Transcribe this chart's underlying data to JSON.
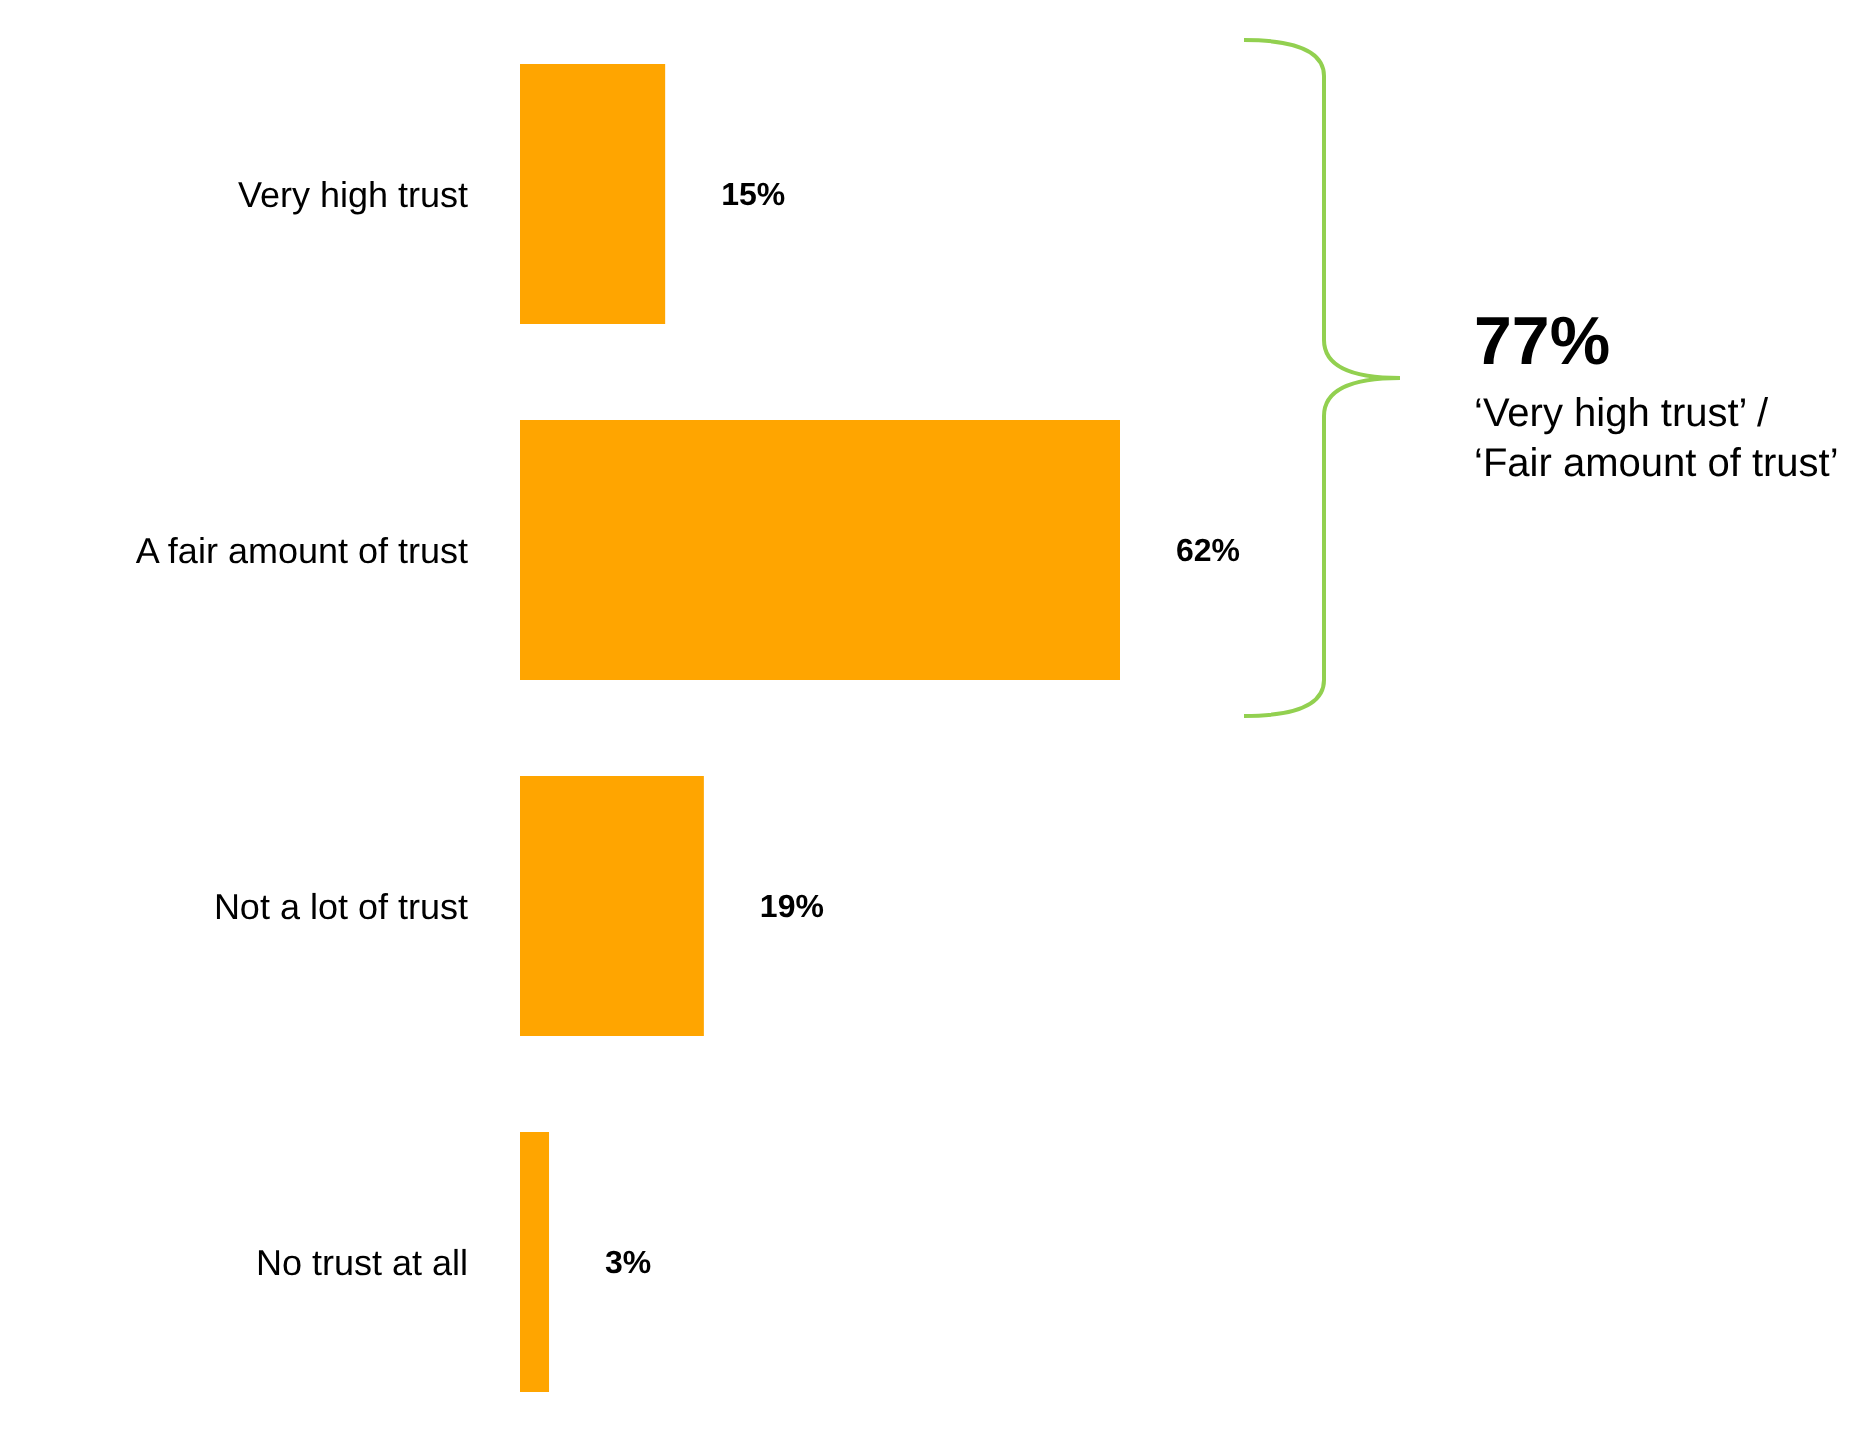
{
  "chart_data": {
    "type": "bar",
    "orientation": "horizontal",
    "categories": [
      "Very high trust",
      "A fair amount of trust",
      "Not a lot of trust",
      "No trust at all"
    ],
    "values": [
      15,
      62,
      19,
      3
    ],
    "value_labels": [
      "15%",
      "62%",
      "19%",
      "3%"
    ],
    "color": "#ffa500",
    "annotations": [
      "77%",
      "‘Very high trust’ / ‘Fair amount of trust’"
    ]
  }
}
